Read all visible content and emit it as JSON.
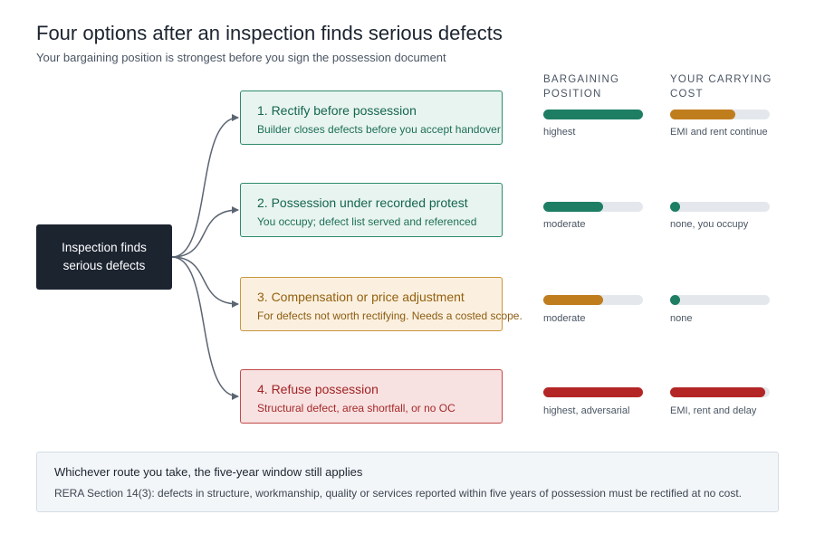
{
  "header": {
    "title": "Four options after an inspection finds serious defects",
    "subtitle": "Your bargaining position is strongest before you sign the possession document"
  },
  "source_node": {
    "label": "Inspection finds serious defects"
  },
  "columns": {
    "bargaining": "BARGAINING POSITION",
    "cost": "YOUR CARRYING COST"
  },
  "colors": {
    "green": "#1d7e64",
    "amber": "#c07d1e",
    "red": "#b42626",
    "track": "#e4e8ed",
    "connector": "#5b6572"
  },
  "options": [
    {
      "title": "1. Rectify before possession",
      "desc": "Builder closes defects before you accept handover",
      "theme": "green",
      "bargaining": {
        "level": 1.0,
        "color": "green",
        "label": "highest"
      },
      "cost": {
        "level": 0.65,
        "color": "amber",
        "label": "EMI and rent continue"
      }
    },
    {
      "title": "2. Possession under recorded protest",
      "desc": "You occupy; defect list served and referenced",
      "theme": "green",
      "bargaining": {
        "level": 0.6,
        "color": "green",
        "label": "moderate"
      },
      "cost": {
        "level": 0.0,
        "color": "green",
        "label": "none, you occupy"
      }
    },
    {
      "title": "3. Compensation or price adjustment",
      "desc": "For defects not worth rectifying. Needs a costed scope.",
      "theme": "amber",
      "bargaining": {
        "level": 0.6,
        "color": "amber",
        "label": "moderate"
      },
      "cost": {
        "level": 0.0,
        "color": "green",
        "label": "none"
      }
    },
    {
      "title": "4. Refuse possession",
      "desc": "Structural defect, area shortfall, or no OC",
      "theme": "red",
      "bargaining": {
        "level": 1.0,
        "color": "red",
        "label": "highest, adversarial"
      },
      "cost": {
        "level": 0.95,
        "color": "red",
        "label": "EMI, rent and delay"
      }
    }
  ],
  "note": {
    "title": "Whichever route you take, the five-year window still applies",
    "body": "RERA Section 14(3): defects in structure, workmanship, quality or services reported within five years of possession must be rectified at no cost."
  }
}
